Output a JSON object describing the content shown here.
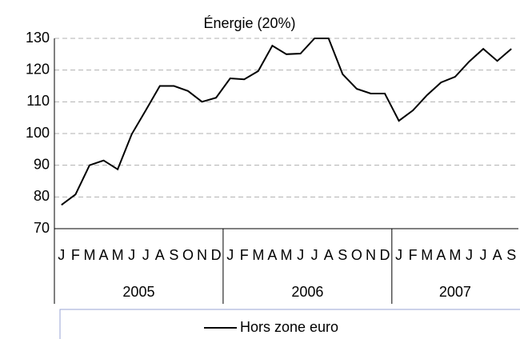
{
  "chart_data": {
    "type": "line",
    "title": "Énergie (20%)",
    "categories": [
      "J",
      "F",
      "M",
      "A",
      "M",
      "J",
      "J",
      "A",
      "S",
      "O",
      "N",
      "D",
      "J",
      "F",
      "M",
      "A",
      "M",
      "J",
      "J",
      "A",
      "S",
      "O",
      "N",
      "D",
      "J",
      "F",
      "M",
      "A",
      "M",
      "J",
      "J",
      "A",
      "S"
    ],
    "groups": [
      "2005",
      "2006",
      "2007"
    ],
    "series": [
      {
        "name": "Hors zone euro",
        "color": "#000000",
        "values": [
          77.5,
          80.8,
          90,
          91.5,
          88.7,
          99.8,
          107.3,
          115,
          115,
          113.4,
          110,
          111.3,
          117.4,
          117.1,
          119.7,
          127.7,
          125,
          125.2,
          130,
          130,
          118.7,
          114.1,
          112.6,
          112.6,
          104,
          107.3,
          112.1,
          116.1,
          117.9,
          122.7,
          126.7,
          122.9,
          126.7
        ]
      }
    ],
    "ylim": [
      70,
      130
    ],
    "yticks": [
      70,
      80,
      90,
      100,
      110,
      120,
      130
    ],
    "grid": true
  }
}
